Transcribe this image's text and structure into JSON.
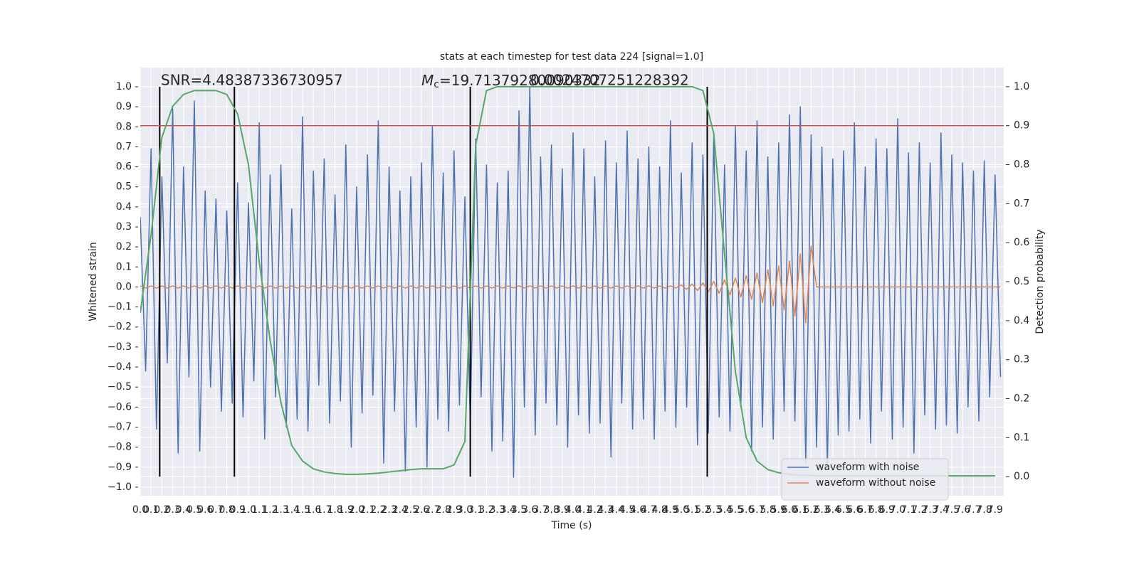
{
  "chart_data": {
    "type": "line",
    "title": "stats at each timestep for test data 224 [signal=1.0]",
    "xlabel": "Time (s)",
    "ylabel": "Whitened strain",
    "y2label": "Detection probability",
    "snr_label": "SNR=4.48387336730957",
    "mc_label": {
      "symbol": "M",
      "subscript": "c",
      "value": "=19.71379280090332"
    },
    "extra_label": "0.0024707251228392",
    "xlim": [
      0,
      7.98
    ],
    "ylim": [
      -1.043,
      1.096
    ],
    "y2lim": [
      -0.049,
      1.049
    ],
    "xticks": [
      {
        "value": 0,
        "label": "0.0"
      },
      0.1,
      0.2,
      0.3,
      0.4,
      0.5,
      0.6,
      0.7,
      0.8,
      0.9,
      {
        "value": 1,
        "label": "1.0"
      },
      1.1,
      1.2,
      1.3,
      1.4,
      1.5,
      1.6,
      1.7,
      1.8,
      1.9,
      {
        "value": 2,
        "label": "2.0"
      },
      2.1,
      2.2,
      2.3,
      2.4,
      2.5,
      2.6,
      2.7,
      2.8,
      2.9,
      {
        "value": 3,
        "label": "3.0"
      },
      3.1,
      3.2,
      3.3,
      3.4,
      3.5,
      3.6,
      3.7,
      3.8,
      3.9,
      {
        "value": 4,
        "label": "4.0"
      },
      4.1,
      4.2,
      4.3,
      4.4,
      4.5,
      4.6,
      4.7,
      4.8,
      4.9,
      {
        "value": 5,
        "label": "5.0"
      },
      5.1,
      5.2,
      5.3,
      5.4,
      5.5,
      5.6,
      5.7,
      5.8,
      5.9,
      {
        "value": 6,
        "label": "6.0"
      },
      6.1,
      6.2,
      6.3,
      6.4,
      6.5,
      6.6,
      6.7,
      6.8,
      6.9,
      {
        "value": 7,
        "label": "7.0"
      },
      7.1,
      7.2,
      7.3,
      7.4,
      7.5,
      7.6,
      7.7,
      7.8,
      7.9
    ],
    "yticks": [
      {
        "value": -1,
        "label": "−1.0"
      },
      {
        "value": -0.9,
        "label": "−0.9"
      },
      {
        "value": -0.8,
        "label": "−0.8"
      },
      {
        "value": -0.7,
        "label": "−0.7"
      },
      {
        "value": -0.6,
        "label": "−0.6"
      },
      {
        "value": -0.5,
        "label": "−0.5"
      },
      {
        "value": -0.4,
        "label": "−0.4"
      },
      {
        "value": -0.3,
        "label": "−0.3"
      },
      {
        "value": -0.2,
        "label": "−0.2"
      },
      {
        "value": -0.1,
        "label": "−0.1"
      },
      {
        "value": 0,
        "label": "0.0"
      },
      0.1,
      0.2,
      0.3,
      0.4,
      0.5,
      0.6,
      0.7,
      0.8,
      0.9,
      {
        "value": 1,
        "label": "1.0"
      }
    ],
    "y2ticks": [
      {
        "value": 0,
        "label": "0.0"
      },
      0.1,
      0.2,
      0.3,
      0.4,
      0.5,
      0.6,
      0.7,
      0.8,
      0.9,
      {
        "value": 1,
        "label": "1.0"
      }
    ],
    "grid": true,
    "legend": "lower right",
    "vlines": [
      0.18,
      0.87,
      3.05,
      5.24
    ],
    "vline_color": "#000000",
    "threshold": 0.9,
    "threshold_color": "#c44e52",
    "series": [
      {
        "name": "waveform with noise",
        "color": "#4c72b0",
        "x": [
          0,
          0.05,
          0.1,
          0.15,
          0.2,
          0.25,
          0.3,
          0.35,
          0.4,
          0.45,
          0.5,
          0.55,
          0.6,
          0.65,
          0.7,
          0.75,
          0.8,
          0.85,
          0.9,
          0.95,
          1,
          1.05,
          1.1,
          1.15,
          1.2,
          1.25,
          1.3,
          1.35,
          1.4,
          1.45,
          1.5,
          1.55,
          1.6,
          1.65,
          1.7,
          1.75,
          1.8,
          1.85,
          1.9,
          1.95,
          2,
          2.05,
          2.1,
          2.15,
          2.2,
          2.25,
          2.3,
          2.35,
          2.4,
          2.45,
          2.5,
          2.55,
          2.6,
          2.65,
          2.7,
          2.75,
          2.8,
          2.85,
          2.9,
          2.95,
          3,
          3.05,
          3.1,
          3.15,
          3.2,
          3.25,
          3.3,
          3.35,
          3.4,
          3.45,
          3.5,
          3.55,
          3.6,
          3.65,
          3.7,
          3.75,
          3.8,
          3.85,
          3.9,
          3.95,
          4,
          4.05,
          4.1,
          4.15,
          4.2,
          4.25,
          4.3,
          4.35,
          4.4,
          4.45,
          4.5,
          4.55,
          4.6,
          4.65,
          4.7,
          4.75,
          4.8,
          4.85,
          4.9,
          4.95,
          5,
          5.05,
          5.1,
          5.15,
          5.2,
          5.25,
          5.3,
          5.35,
          5.4,
          5.45,
          5.5,
          5.55,
          5.6,
          5.65,
          5.7,
          5.75,
          5.8,
          5.85,
          5.9,
          5.95,
          6,
          6.05,
          6.1,
          6.15,
          6.2,
          6.25,
          6.3,
          6.35,
          6.4,
          6.45,
          6.5,
          6.55,
          6.6,
          6.65,
          6.7,
          6.75,
          6.8,
          6.85,
          6.9,
          6.95,
          7,
          7.05,
          7.1,
          7.15,
          7.2,
          7.25,
          7.3,
          7.35,
          7.4,
          7.45,
          7.5,
          7.55,
          7.6,
          7.65,
          7.7,
          7.75,
          7.8,
          7.85,
          7.9,
          7.95
        ],
        "values": [
          0.35,
          -0.42,
          0.69,
          -0.71,
          0.55,
          -0.38,
          0.89,
          -0.83,
          0.6,
          -0.45,
          0.93,
          -0.82,
          0.48,
          -0.5,
          0.44,
          -0.62,
          0.38,
          -0.58,
          0.52,
          -0.65,
          0.42,
          -0.47,
          0.82,
          -0.76,
          0.56,
          -0.55,
          0.61,
          -0.7,
          0.39,
          -0.66,
          0.85,
          -0.72,
          0.58,
          -0.49,
          0.64,
          -0.68,
          0.46,
          -0.57,
          0.71,
          -0.8,
          0.5,
          -0.63,
          0.66,
          -0.54,
          0.83,
          -0.88,
          0.6,
          -0.62,
          0.48,
          -0.92,
          0.55,
          -0.7,
          0.62,
          -0.9,
          0.8,
          -0.66,
          0.57,
          -0.72,
          0.68,
          -0.59,
          0.45,
          -0.69,
          0.74,
          -0.55,
          0.61,
          -0.82,
          0.52,
          -0.77,
          0.58,
          -0.95,
          0.88,
          -0.6,
          1.0,
          -0.74,
          0.65,
          -0.58,
          0.71,
          -0.69,
          0.59,
          -0.8,
          0.77,
          -0.64,
          0.69,
          -0.73,
          0.55,
          -0.68,
          0.73,
          -0.85,
          0.62,
          -0.58,
          0.78,
          -0.71,
          0.64,
          -0.66,
          0.7,
          -0.76,
          0.6,
          -0.62,
          0.83,
          -0.7,
          0.57,
          -0.6,
          0.72,
          -0.79,
          0.66,
          -0.73,
          0.75,
          -0.65,
          0.61,
          -0.72,
          0.8,
          -0.6,
          0.68,
          -0.82,
          0.83,
          -0.7,
          0.65,
          -0.76,
          0.72,
          -0.62,
          0.86,
          -0.67,
          0.9,
          -0.88,
          0.76,
          -0.8,
          0.7,
          -0.9,
          0.64,
          -0.74,
          0.68,
          -0.72,
          0.82,
          -0.66,
          0.6,
          -0.78,
          0.74,
          -0.62,
          0.69,
          -0.76,
          0.84,
          -0.7,
          0.67,
          -0.83,
          0.72,
          -0.64,
          0.62,
          -0.71,
          0.77,
          -0.69,
          0.66,
          -0.73,
          0.62,
          -0.6,
          0.58,
          -0.67,
          0.63,
          -0.55,
          0.56,
          -0.45
        ]
      },
      {
        "name": "waveform without noise",
        "color": "#dd8452",
        "x": [
          0,
          0.05,
          0.1,
          0.15,
          0.2,
          0.25,
          0.3,
          0.35,
          0.4,
          0.45,
          0.5,
          0.55,
          0.6,
          0.65,
          0.7,
          0.75,
          0.8,
          0.85,
          0.9,
          0.95,
          1,
          1.05,
          1.1,
          1.15,
          1.2,
          1.25,
          1.3,
          1.35,
          1.4,
          1.45,
          1.5,
          1.55,
          1.6,
          1.65,
          1.7,
          1.75,
          1.8,
          1.85,
          1.9,
          1.95,
          2,
          2.05,
          2.1,
          2.15,
          2.2,
          2.25,
          2.3,
          2.35,
          2.4,
          2.45,
          2.5,
          2.55,
          2.6,
          2.65,
          2.7,
          2.75,
          2.8,
          2.85,
          2.9,
          2.95,
          3,
          3.05,
          3.1,
          3.15,
          3.2,
          3.25,
          3.3,
          3.35,
          3.4,
          3.45,
          3.5,
          3.55,
          3.6,
          3.65,
          3.7,
          3.75,
          3.8,
          3.85,
          3.9,
          3.95,
          4,
          4.05,
          4.1,
          4.15,
          4.2,
          4.25,
          4.3,
          4.35,
          4.4,
          4.45,
          4.5,
          4.55,
          4.6,
          4.65,
          4.7,
          4.75,
          4.8,
          4.85,
          4.9,
          4.95,
          5,
          5.05,
          5.1,
          5.15,
          5.2,
          5.25,
          5.3,
          5.35,
          5.4,
          5.45,
          5.5,
          5.55,
          5.6,
          5.65,
          5.7,
          5.75,
          5.8,
          5.85,
          5.9,
          5.95,
          6,
          6.05,
          6.1,
          6.15,
          6.2,
          6.25,
          6.3,
          6.35,
          6.4,
          6.45,
          6.5,
          6.55,
          6.6,
          6.65,
          6.7,
          6.75,
          6.8,
          6.85,
          6.9,
          6.95,
          7,
          7.05,
          7.1,
          7.15,
          7.2,
          7.25,
          7.3,
          7.35,
          7.4,
          7.45,
          7.5,
          7.55,
          7.6,
          7.65,
          7.7,
          7.75,
          7.8,
          7.85,
          7.9,
          7.95
        ],
        "values": [
          0.005,
          -0.005,
          0.005,
          -0.005,
          0.005,
          -0.005,
          0.005,
          -0.005,
          0.005,
          -0.005,
          0.005,
          -0.005,
          0.005,
          -0.005,
          0.005,
          -0.005,
          0.005,
          -0.005,
          0.005,
          -0.005,
          0.005,
          -0.005,
          0.005,
          -0.005,
          0.005,
          -0.005,
          0.005,
          -0.005,
          0.005,
          -0.005,
          0.005,
          -0.005,
          0.005,
          -0.005,
          0.005,
          -0.005,
          0.005,
          -0.005,
          0.005,
          -0.005,
          0.005,
          -0.005,
          0.005,
          -0.005,
          0.005,
          -0.005,
          0.005,
          -0.005,
          0.005,
          -0.005,
          0.005,
          -0.005,
          0.005,
          -0.005,
          0.005,
          -0.005,
          0.005,
          -0.005,
          0.005,
          -0.005,
          0.005,
          -0.005,
          0.005,
          -0.005,
          0.005,
          -0.005,
          0.005,
          -0.005,
          0.005,
          -0.005,
          0.005,
          -0.005,
          0.005,
          -0.005,
          0.005,
          -0.005,
          0.005,
          -0.005,
          0.005,
          -0.005,
          0.005,
          -0.005,
          0.005,
          -0.005,
          0.005,
          -0.005,
          0.005,
          -0.005,
          0.005,
          -0.005,
          0.005,
          -0.005,
          0.005,
          -0.005,
          0.005,
          -0.005,
          0.005,
          -0.005,
          0.005,
          -0.005,
          0.01,
          -0.012,
          0.015,
          -0.018,
          0.02,
          -0.024,
          0.028,
          -0.032,
          0.036,
          -0.04,
          0.045,
          -0.05,
          0.056,
          -0.062,
          0.07,
          -0.078,
          0.086,
          -0.095,
          0.105,
          -0.115,
          0.13,
          -0.145,
          0.165,
          -0.18,
          0.205,
          0,
          0,
          0,
          0,
          0,
          0,
          0,
          0,
          0,
          0,
          0,
          0,
          0,
          0,
          0,
          0,
          0,
          0,
          0,
          0,
          0,
          0,
          0,
          0,
          0,
          0,
          0,
          0,
          0,
          0,
          0,
          0,
          0,
          0,
          0
        ]
      },
      {
        "color": "#55a868",
        "axis": "y2",
        "x": [
          0,
          0.1,
          0.2,
          0.3,
          0.4,
          0.5,
          0.6,
          0.7,
          0.8,
          0.9,
          1,
          1.1,
          1.2,
          1.3,
          1.4,
          1.5,
          1.6,
          1.7,
          1.8,
          1.9,
          2,
          2.1,
          2.2,
          2.3,
          2.4,
          2.5,
          2.6,
          2.7,
          2.8,
          2.9,
          3,
          3.1,
          3.2,
          3.3,
          3.4,
          3.5,
          3.6,
          3.7,
          3.8,
          3.9,
          4,
          4.1,
          4.2,
          4.3,
          4.4,
          4.5,
          4.6,
          4.7,
          4.8,
          4.9,
          5,
          5.1,
          5.2,
          5.3,
          5.4,
          5.5,
          5.6,
          5.7,
          5.8,
          5.9,
          6,
          6.1,
          6.2,
          6.3,
          6.4,
          6.5,
          6.6,
          6.7,
          6.8,
          6.9,
          7,
          7.1,
          7.2,
          7.3,
          7.4,
          7.5,
          7.6,
          7.7,
          7.8,
          7.9
        ],
        "values": [
          0.42,
          0.62,
          0.87,
          0.95,
          0.98,
          0.99,
          0.99,
          0.99,
          0.98,
          0.93,
          0.8,
          0.55,
          0.35,
          0.19,
          0.08,
          0.04,
          0.02,
          0.012,
          0.008,
          0.006,
          0.006,
          0.007,
          0.009,
          0.012,
          0.015,
          0.018,
          0.02,
          0.02,
          0.02,
          0.03,
          0.09,
          0.85,
          0.99,
          1.0,
          1.0,
          1.0,
          1.0,
          1.0,
          1.0,
          1.0,
          1.0,
          1.0,
          1.0,
          1.0,
          1.0,
          1.0,
          1.0,
          1.0,
          1.0,
          1.0,
          1.0,
          1.0,
          0.99,
          0.88,
          0.57,
          0.27,
          0.1,
          0.04,
          0.018,
          0.01,
          0.006,
          0.004,
          0.003,
          0.002,
          0.002,
          0.002,
          0.002,
          0.002,
          0.002,
          0.002,
          0.002,
          0.002,
          0.002,
          0.002,
          0.002,
          0.002,
          0.002,
          0.002,
          0.002,
          0.002
        ]
      }
    ]
  }
}
